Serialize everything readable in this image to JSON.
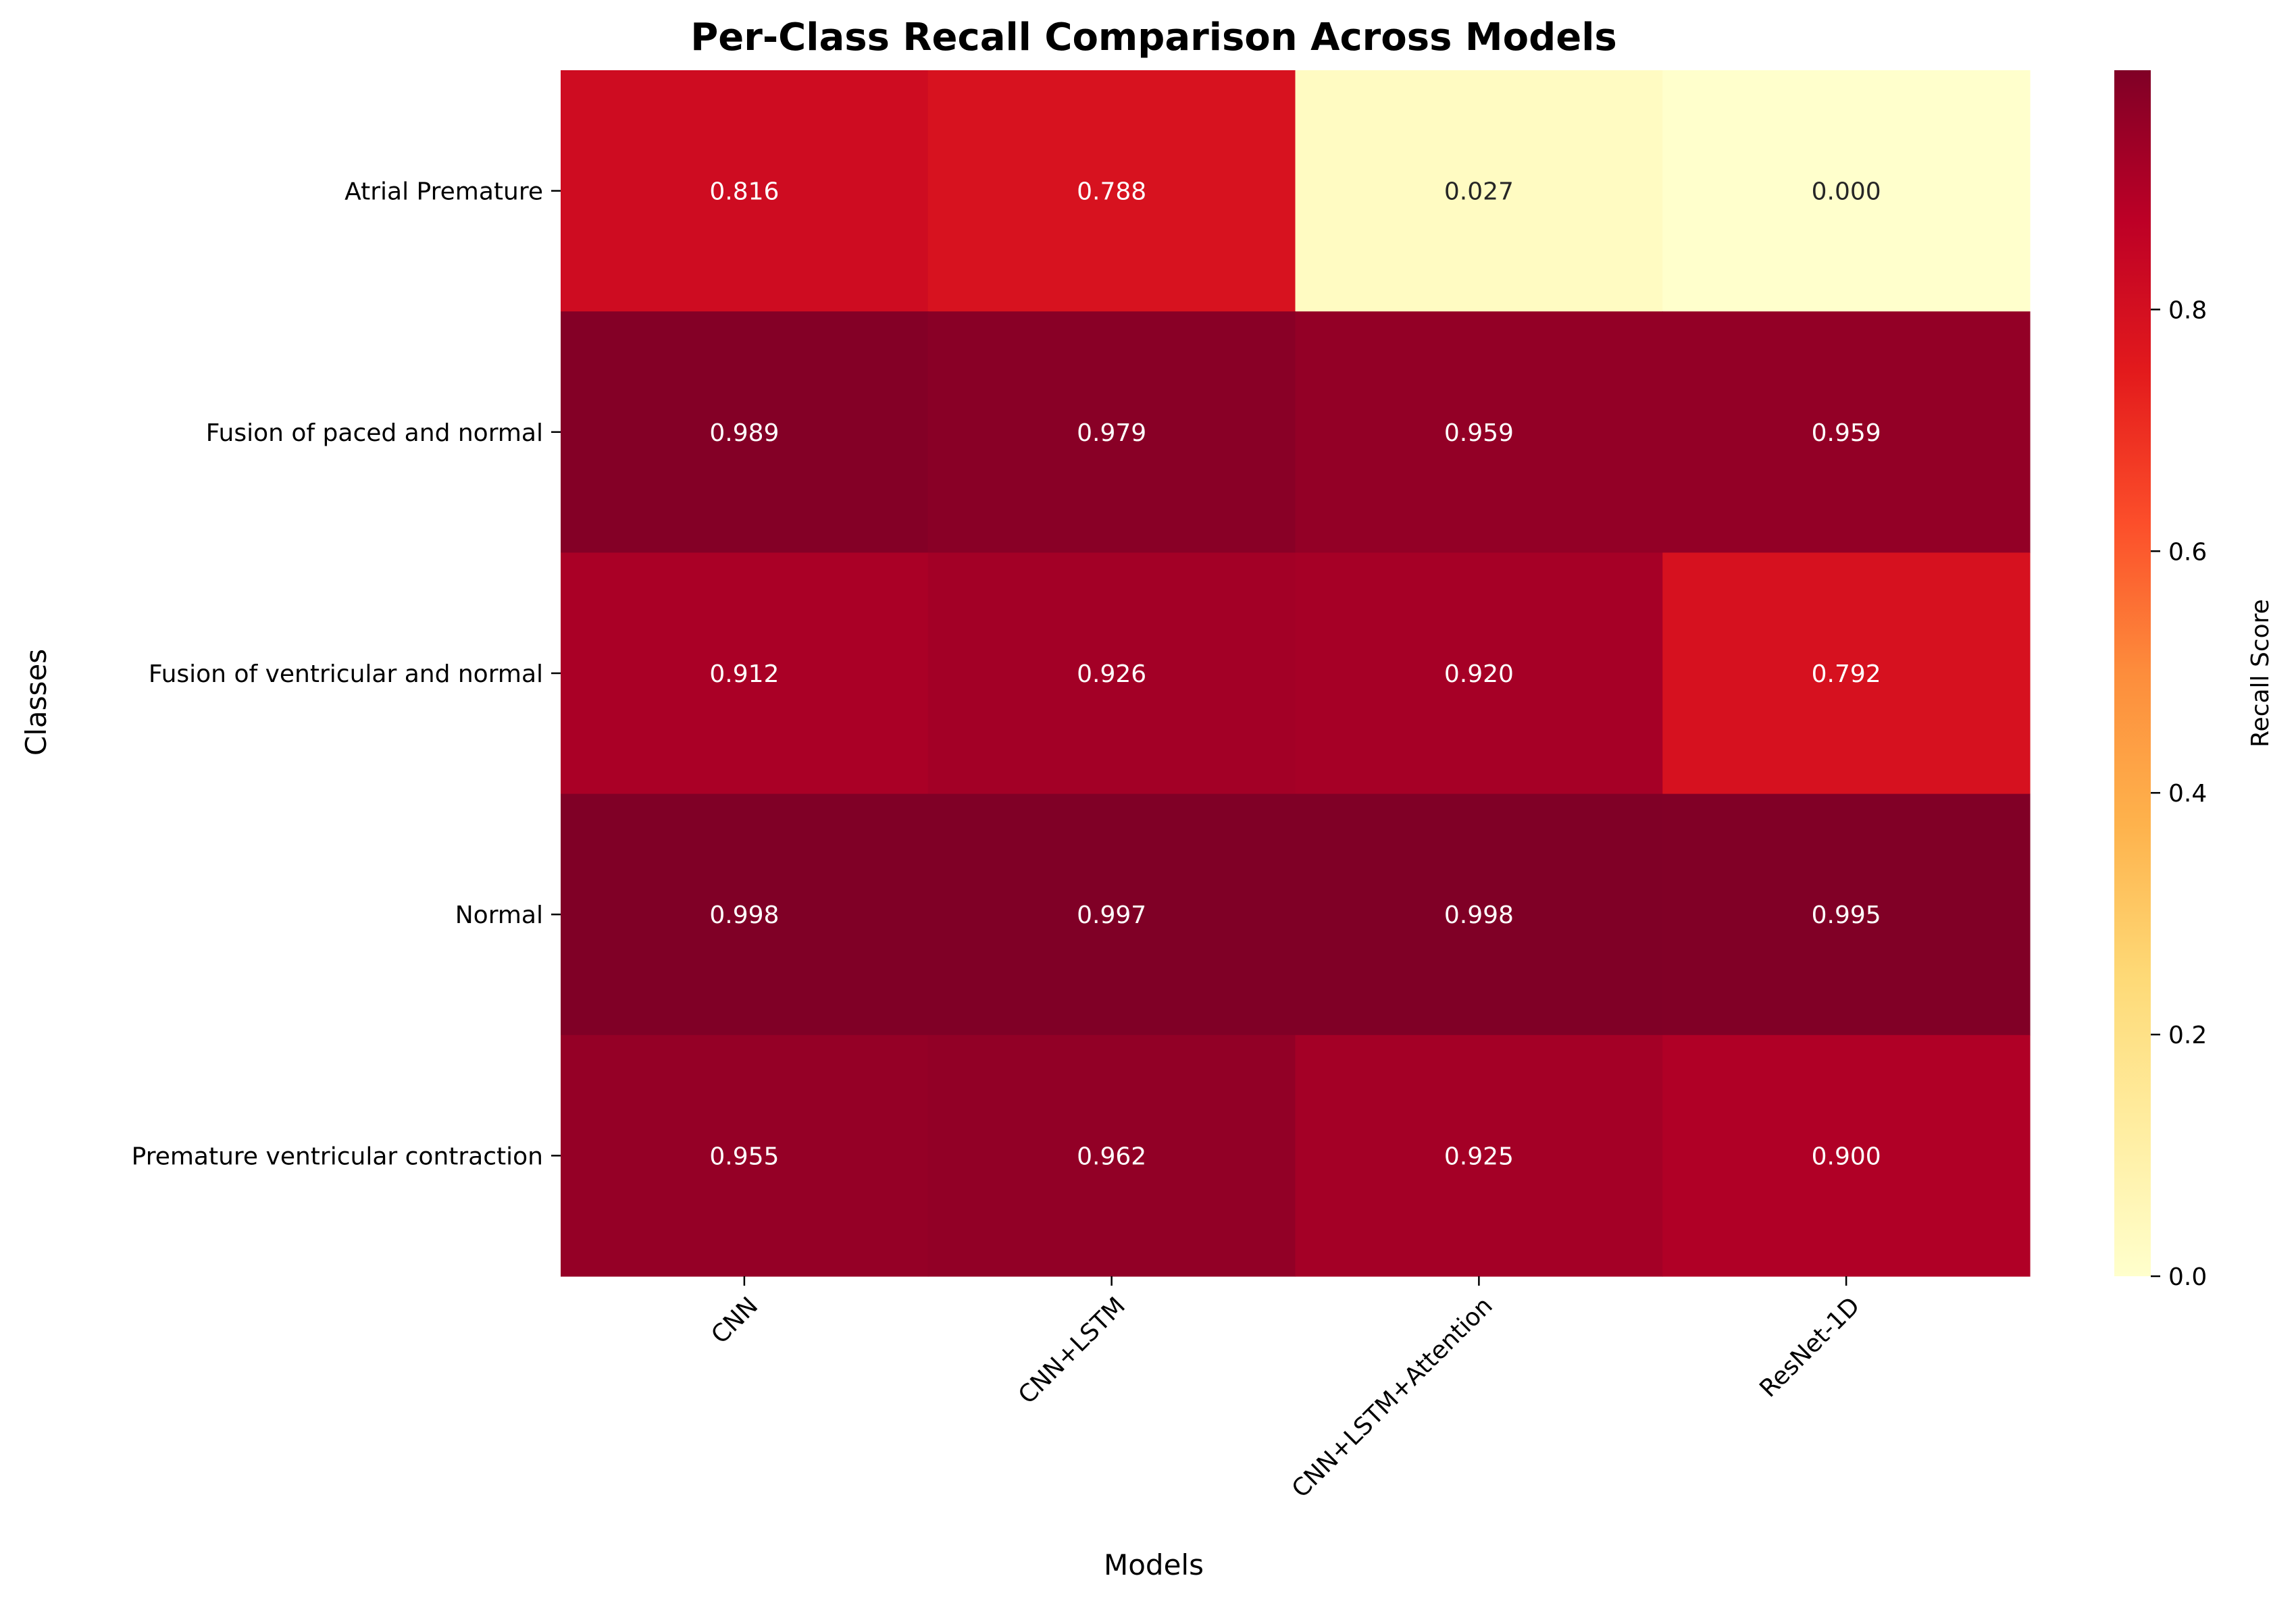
{
  "chart_data": {
    "type": "heatmap",
    "title": "Per-Class Recall Comparison Across Models",
    "xlabel": "Models",
    "ylabel": "Classes",
    "x_categories": [
      "CNN",
      "CNN+LSTM",
      "CNN+LSTM+Attention",
      "ResNet-1D"
    ],
    "y_categories": [
      "Atrial Premature",
      "Fusion of paced and normal",
      "Fusion of ventricular and normal",
      "Normal",
      "Premature ventricular contraction"
    ],
    "values": [
      [
        0.816,
        0.788,
        0.027,
        0.0
      ],
      [
        0.989,
        0.979,
        0.959,
        0.959
      ],
      [
        0.912,
        0.926,
        0.92,
        0.792
      ],
      [
        0.998,
        0.997,
        0.998,
        0.995
      ],
      [
        0.955,
        0.962,
        0.925,
        0.9
      ]
    ],
    "value_labels": [
      [
        "0.816",
        "0.788",
        "0.027",
        "0.000"
      ],
      [
        "0.989",
        "0.979",
        "0.959",
        "0.959"
      ],
      [
        "0.912",
        "0.926",
        "0.920",
        "0.792"
      ],
      [
        "0.998",
        "0.997",
        "0.998",
        "0.995"
      ],
      [
        "0.955",
        "0.962",
        "0.925",
        "0.900"
      ]
    ],
    "colormap": "YlOrRd",
    "vmin": 0.0,
    "vmax": 0.998,
    "colorbar": {
      "label": "Recall Score",
      "ticks": [
        0.0,
        0.2,
        0.4,
        0.6,
        0.8
      ],
      "tick_labels": [
        "0.0",
        "0.2",
        "0.4",
        "0.6",
        "0.8"
      ]
    }
  }
}
